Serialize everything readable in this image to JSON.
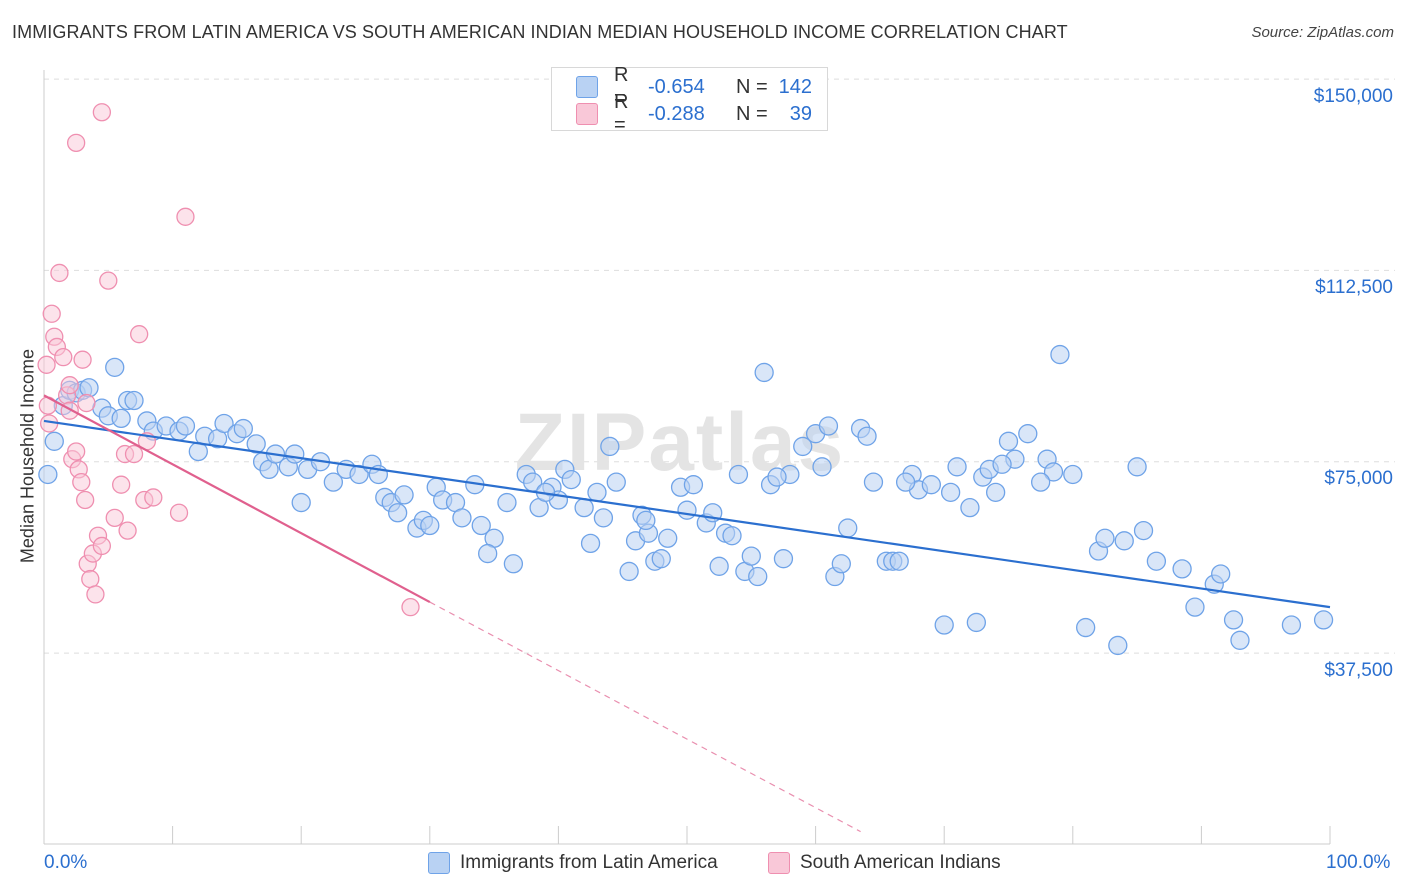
{
  "header": {
    "title": "IMMIGRANTS FROM LATIN AMERICA VS SOUTH AMERICAN INDIAN MEDIAN HOUSEHOLD INCOME CORRELATION CHART",
    "source": "Source: ZipAtlas.com"
  },
  "watermark": "ZIPatlas",
  "colors": {
    "blue": "#6fa3e8",
    "blue_fill": "#b9d2f3",
    "blue_line": "#2b6fcf",
    "pink": "#ef8fb0",
    "pink_fill": "#f9c8d8",
    "pink_line": "#e0608e",
    "accent_text": "#2b6fcf"
  },
  "legend": {
    "rows": [
      {
        "r_label": "R =",
        "r_value": "-0.654",
        "n_label": "N =",
        "n_value": "142"
      },
      {
        "r_label": "R =",
        "r_value": "-0.288",
        "n_label": "N =",
        "n_value": "39"
      }
    ]
  },
  "bottom_legend": {
    "series1": "Immigrants from Latin America",
    "series2": "South American Indians"
  },
  "chart_data": {
    "type": "scatter",
    "title": "IMMIGRANTS FROM LATIN AMERICA VS SOUTH AMERICAN INDIAN MEDIAN HOUSEHOLD INCOME CORRELATION CHART",
    "xlabel": "",
    "ylabel": "Median Household Income",
    "xlim": [
      0,
      100
    ],
    "ylim": [
      0,
      155000
    ],
    "x_tick_labels": [
      "0.0%",
      "100.0%"
    ],
    "y_ticks": [
      37500,
      75000,
      112500,
      150000
    ],
    "y_tick_labels": [
      "$37,500",
      "$75,000",
      "$112,500",
      "$150,000"
    ],
    "grid": true,
    "series": [
      {
        "name": "Immigrants from Latin America",
        "r": -0.654,
        "n": 142,
        "trend": {
          "x": [
            0,
            100
          ],
          "y": [
            83000,
            46500
          ]
        },
        "points": [
          [
            0.3,
            72500
          ],
          [
            0.8,
            79000
          ],
          [
            1.5,
            86000
          ],
          [
            2.0,
            89000
          ],
          [
            2.5,
            88500
          ],
          [
            3.0,
            89000
          ],
          [
            3.5,
            89500
          ],
          [
            5.5,
            93500
          ],
          [
            4.5,
            85500
          ],
          [
            5.0,
            84000
          ],
          [
            6.0,
            83500
          ],
          [
            6.5,
            87000
          ],
          [
            7.0,
            87000
          ],
          [
            8.0,
            83000
          ],
          [
            8.5,
            81000
          ],
          [
            9.5,
            82000
          ],
          [
            10.5,
            81000
          ],
          [
            11.0,
            82000
          ],
          [
            12.5,
            80000
          ],
          [
            12.0,
            77000
          ],
          [
            13.5,
            79500
          ],
          [
            14.0,
            82500
          ],
          [
            15.0,
            80500
          ],
          [
            15.5,
            81500
          ],
          [
            16.5,
            78500
          ],
          [
            17.0,
            75000
          ],
          [
            17.5,
            73500
          ],
          [
            18.0,
            76500
          ],
          [
            19.0,
            74000
          ],
          [
            19.5,
            76500
          ],
          [
            20.5,
            73500
          ],
          [
            20.0,
            67000
          ],
          [
            21.5,
            75000
          ],
          [
            22.5,
            71000
          ],
          [
            23.5,
            73500
          ],
          [
            24.5,
            72500
          ],
          [
            25.5,
            74500
          ],
          [
            26.0,
            72500
          ],
          [
            26.5,
            68000
          ],
          [
            27.0,
            67000
          ],
          [
            28.0,
            68500
          ],
          [
            29.0,
            62000
          ],
          [
            29.5,
            63500
          ],
          [
            30.5,
            70000
          ],
          [
            31.0,
            67500
          ],
          [
            32.0,
            67000
          ],
          [
            32.5,
            64000
          ],
          [
            33.5,
            70500
          ],
          [
            34.0,
            62500
          ],
          [
            35.0,
            60000
          ],
          [
            34.5,
            57000
          ],
          [
            36.0,
            67000
          ],
          [
            37.5,
            72500
          ],
          [
            38.0,
            71000
          ],
          [
            38.5,
            66000
          ],
          [
            39.5,
            70000
          ],
          [
            40.0,
            67500
          ],
          [
            40.5,
            73500
          ],
          [
            41.0,
            71500
          ],
          [
            42.0,
            66000
          ],
          [
            42.5,
            59000
          ],
          [
            43.5,
            64000
          ],
          [
            44.0,
            78000
          ],
          [
            44.5,
            71000
          ],
          [
            45.5,
            53500
          ],
          [
            46.0,
            59500
          ],
          [
            46.5,
            64500
          ],
          [
            47.0,
            61000
          ],
          [
            47.5,
            55500
          ],
          [
            48.0,
            56000
          ],
          [
            48.5,
            60000
          ],
          [
            49.5,
            70000
          ],
          [
            50.0,
            65500
          ],
          [
            51.5,
            63000
          ],
          [
            52.5,
            54500
          ],
          [
            53.0,
            61000
          ],
          [
            53.5,
            60500
          ],
          [
            54.0,
            72500
          ],
          [
            54.5,
            53500
          ],
          [
            55.5,
            52500
          ],
          [
            56.0,
            92500
          ],
          [
            56.5,
            70500
          ],
          [
            57.5,
            56000
          ],
          [
            58.0,
            72500
          ],
          [
            59.0,
            78000
          ],
          [
            60.0,
            80500
          ],
          [
            61.0,
            82000
          ],
          [
            61.5,
            52500
          ],
          [
            62.0,
            55000
          ],
          [
            62.5,
            62000
          ],
          [
            63.5,
            81500
          ],
          [
            64.5,
            71000
          ],
          [
            65.5,
            55500
          ],
          [
            66.0,
            55500
          ],
          [
            66.5,
            55500
          ],
          [
            67.5,
            72500
          ],
          [
            68.0,
            69500
          ],
          [
            69.0,
            70500
          ],
          [
            70.0,
            43000
          ],
          [
            71.0,
            74000
          ],
          [
            72.0,
            66000
          ],
          [
            72.5,
            43500
          ],
          [
            73.0,
            72000
          ],
          [
            73.5,
            73500
          ],
          [
            74.0,
            69000
          ],
          [
            75.0,
            79000
          ],
          [
            75.5,
            75500
          ],
          [
            79.0,
            96000
          ],
          [
            76.5,
            80500
          ],
          [
            78.0,
            75500
          ],
          [
            78.5,
            73000
          ],
          [
            80.0,
            72500
          ],
          [
            81.0,
            42500
          ],
          [
            82.0,
            57500
          ],
          [
            82.5,
            60000
          ],
          [
            83.5,
            39000
          ],
          [
            84.0,
            59500
          ],
          [
            85.5,
            61500
          ],
          [
            86.5,
            55500
          ],
          [
            88.5,
            54000
          ],
          [
            89.5,
            46500
          ],
          [
            91.0,
            51000
          ],
          [
            91.5,
            53000
          ],
          [
            92.5,
            44000
          ],
          [
            93.0,
            40000
          ],
          [
            97.0,
            43000
          ],
          [
            99.5,
            44000
          ],
          [
            64.0,
            80000
          ],
          [
            50.5,
            70500
          ],
          [
            36.5,
            55000
          ],
          [
            39.0,
            69000
          ],
          [
            27.5,
            65000
          ],
          [
            43.0,
            69000
          ],
          [
            30.0,
            62500
          ],
          [
            55.0,
            56500
          ],
          [
            57.0,
            72000
          ],
          [
            60.5,
            74000
          ],
          [
            67.0,
            71000
          ],
          [
            70.5,
            69000
          ],
          [
            74.5,
            74500
          ],
          [
            85.0,
            74000
          ],
          [
            46.8,
            63500
          ],
          [
            52.0,
            65000
          ],
          [
            77.5,
            71000
          ]
        ]
      },
      {
        "name": "South American Indians",
        "r": -0.288,
        "n": 39,
        "trend": {
          "x": [
            0,
            30
          ],
          "y": [
            88000,
            47500
          ]
        },
        "trend_dashed": {
          "x": [
            30,
            63.5
          ],
          "y": [
            47500,
            2500
          ]
        },
        "points": [
          [
            0.2,
            94000
          ],
          [
            0.3,
            86000
          ],
          [
            0.4,
            82500
          ],
          [
            0.6,
            104000
          ],
          [
            0.8,
            99500
          ],
          [
            1.0,
            97500
          ],
          [
            1.2,
            112000
          ],
          [
            1.5,
            95500
          ],
          [
            1.8,
            88000
          ],
          [
            2.0,
            85000
          ],
          [
            2.2,
            75500
          ],
          [
            2.5,
            77000
          ],
          [
            2.7,
            73500
          ],
          [
            2.9,
            71000
          ],
          [
            3.0,
            95000
          ],
          [
            3.2,
            67500
          ],
          [
            3.4,
            55000
          ],
          [
            3.6,
            52000
          ],
          [
            3.8,
            57000
          ],
          [
            4.0,
            49000
          ],
          [
            4.2,
            60500
          ],
          [
            4.5,
            58500
          ],
          [
            2.5,
            137500
          ],
          [
            4.5,
            143500
          ],
          [
            5.0,
            110500
          ],
          [
            5.5,
            64000
          ],
          [
            6.0,
            70500
          ],
          [
            6.5,
            61500
          ],
          [
            6.3,
            76500
          ],
          [
            7.0,
            76500
          ],
          [
            7.4,
            100000
          ],
          [
            7.8,
            67500
          ],
          [
            8.0,
            79000
          ],
          [
            8.5,
            68000
          ],
          [
            10.5,
            65000
          ],
          [
            11.0,
            123000
          ],
          [
            28.5,
            46500
          ],
          [
            2.0,
            90000
          ],
          [
            3.3,
            86500
          ]
        ]
      }
    ]
  }
}
